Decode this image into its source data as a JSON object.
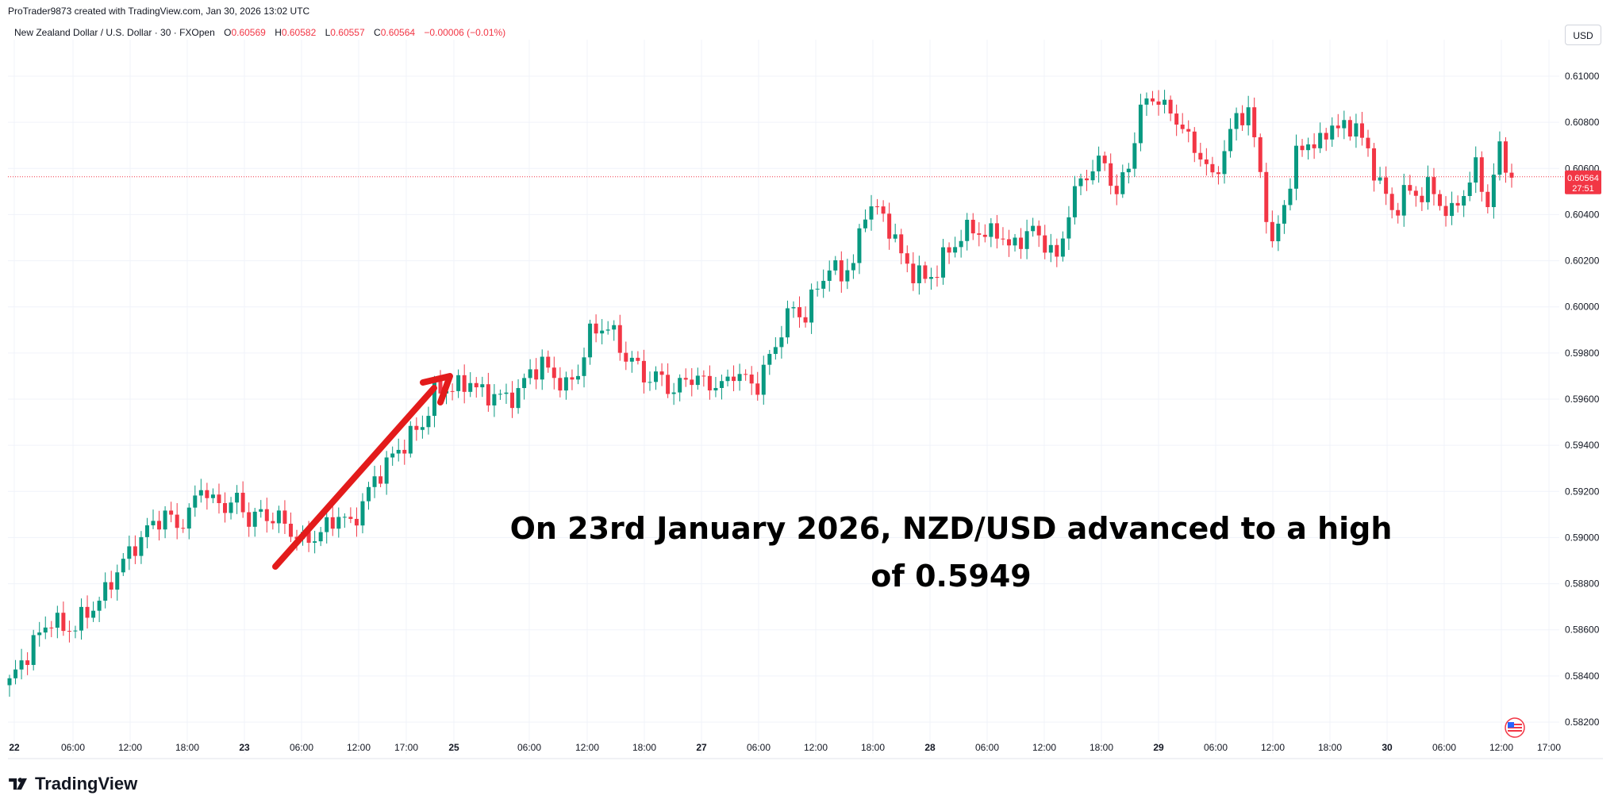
{
  "header": {
    "credit": "ProTrader9873 created with TradingView.com, Jan 30, 2026 13:02 UTC"
  },
  "legend": {
    "symbol": "New Zealand Dollar / U.S. Dollar · 30 · FXOpen",
    "o_label": "O",
    "o_value": "0.60569",
    "h_label": "H",
    "h_value": "0.60582",
    "l_label": "L",
    "l_value": "0.60557",
    "c_label": "C",
    "c_value": "0.60564",
    "change": "−0.00006 (−0.01%)"
  },
  "currency_button": "USD",
  "price_tag": {
    "value": "0.60564",
    "countdown": "27:51"
  },
  "annotation": {
    "line1": "On 23rd January 2026, NZD/USD advanced to a high",
    "line2": "of 0.5949"
  },
  "brand": {
    "name": "TradingView"
  },
  "colors": {
    "up": "#089981",
    "down": "#f23645",
    "arrow": "#e31b1b",
    "grid": "#f0f3fa",
    "axis_text": "#131722",
    "price_line": "#f23645"
  },
  "icons": {
    "brand": "tradingview-logo-icon",
    "flag": "us-flag-icon"
  },
  "chart_data": {
    "type": "candlestick",
    "title": "New Zealand Dollar / U.S. Dollar · 30 · FXOpen",
    "ylim": [
      0.5815,
      0.6112
    ],
    "y_ticks": [
      "0.61000",
      "0.60800",
      "0.60600",
      "0.60400",
      "0.60200",
      "0.60000",
      "0.59800",
      "0.59600",
      "0.59400",
      "0.59200",
      "0.59000",
      "0.58800",
      "0.58600",
      "0.58400",
      "0.58200"
    ],
    "x_ticks": [
      {
        "label": "22",
        "bold": true
      },
      {
        "label": "06:00"
      },
      {
        "label": "12:00"
      },
      {
        "label": "18:00"
      },
      {
        "label": "23",
        "bold": true
      },
      {
        "label": "06:00"
      },
      {
        "label": "12:00"
      },
      {
        "label": "17:00"
      },
      {
        "label": "25",
        "bold": true
      },
      {
        "label": "06:00"
      },
      {
        "label": "12:00"
      },
      {
        "label": "18:00"
      },
      {
        "label": "27",
        "bold": true
      },
      {
        "label": "06:00"
      },
      {
        "label": "12:00"
      },
      {
        "label": "18:00"
      },
      {
        "label": "28",
        "bold": true
      },
      {
        "label": "06:00"
      },
      {
        "label": "12:00"
      },
      {
        "label": "18:00"
      },
      {
        "label": "29",
        "bold": true
      },
      {
        "label": "06:00"
      },
      {
        "label": "12:00"
      },
      {
        "label": "18:00"
      },
      {
        "label": "30",
        "bold": true
      },
      {
        "label": "06:00"
      },
      {
        "label": "12:00"
      },
      {
        "label": "17:00"
      }
    ],
    "last_price": 0.60564,
    "close_path": [
      [
        0,
        0.5837
      ],
      [
        3,
        0.585
      ],
      [
        5,
        0.5858
      ],
      [
        7,
        0.5865
      ],
      [
        9,
        0.586
      ],
      [
        11,
        0.5862
      ],
      [
        14,
        0.587
      ],
      [
        16,
        0.5876
      ],
      [
        18,
        0.5886
      ],
      [
        20,
        0.5893
      ],
      [
        22,
        0.59
      ],
      [
        24,
        0.5906
      ],
      [
        26,
        0.591
      ],
      [
        28,
        0.5905
      ],
      [
        30,
        0.591
      ],
      [
        32,
        0.5923
      ],
      [
        34,
        0.5915
      ],
      [
        36,
        0.5914
      ],
      [
        38,
        0.5916
      ],
      [
        40,
        0.5908
      ],
      [
        42,
        0.591
      ],
      [
        45,
        0.5908
      ],
      [
        47,
        0.5903
      ],
      [
        49,
        0.5898
      ],
      [
        52,
        0.5902
      ],
      [
        55,
        0.591
      ],
      [
        57,
        0.5905
      ],
      [
        59,
        0.5915
      ],
      [
        61,
        0.5925
      ],
      [
        63,
        0.5932
      ],
      [
        65,
        0.5938
      ],
      [
        67,
        0.5944
      ],
      [
        69,
        0.5949
      ],
      [
        71,
        0.5963
      ],
      [
        73,
        0.5965
      ],
      [
        75,
        0.5965
      ],
      [
        77,
        0.5968
      ],
      [
        79,
        0.5962
      ],
      [
        81,
        0.5962
      ],
      [
        83,
        0.596
      ],
      [
        85,
        0.5963
      ],
      [
        87,
        0.5972
      ],
      [
        89,
        0.5975
      ],
      [
        91,
        0.597
      ],
      [
        93,
        0.5965
      ],
      [
        95,
        0.5972
      ],
      [
        97,
        0.5988
      ],
      [
        99,
        0.5992
      ],
      [
        101,
        0.5988
      ],
      [
        103,
        0.5978
      ],
      [
        105,
        0.5974
      ],
      [
        107,
        0.5968
      ],
      [
        109,
        0.597
      ],
      [
        111,
        0.5962
      ],
      [
        113,
        0.597
      ],
      [
        115,
        0.5968
      ],
      [
        117,
        0.5967
      ],
      [
        119,
        0.5965
      ],
      [
        121,
        0.5972
      ],
      [
        123,
        0.5968
      ],
      [
        125,
        0.5966
      ],
      [
        127,
        0.5978
      ],
      [
        129,
        0.599
      ],
      [
        131,
        0.6
      ],
      [
        133,
        0.5995
      ],
      [
        135,
        0.601
      ],
      [
        137,
        0.6016
      ],
      [
        139,
        0.6015
      ],
      [
        141,
        0.6018
      ],
      [
        143,
        0.6043
      ],
      [
        145,
        0.6042
      ],
      [
        147,
        0.6035
      ],
      [
        149,
        0.6022
      ],
      [
        151,
        0.6015
      ],
      [
        153,
        0.6012
      ],
      [
        155,
        0.6016
      ],
      [
        157,
        0.6025
      ],
      [
        159,
        0.603
      ],
      [
        161,
        0.6035
      ],
      [
        163,
        0.603
      ],
      [
        165,
        0.6034
      ],
      [
        167,
        0.6025
      ],
      [
        169,
        0.603
      ],
      [
        171,
        0.6033
      ],
      [
        173,
        0.6028
      ],
      [
        175,
        0.602
      ],
      [
        177,
        0.6042
      ],
      [
        179,
        0.6055
      ],
      [
        181,
        0.606
      ],
      [
        183,
        0.6063
      ],
      [
        185,
        0.6048
      ],
      [
        187,
        0.6062
      ],
      [
        189,
        0.6085
      ],
      [
        191,
        0.6092
      ],
      [
        193,
        0.6086
      ],
      [
        195,
        0.6082
      ],
      [
        197,
        0.6072
      ],
      [
        199,
        0.6066
      ],
      [
        201,
        0.6055
      ],
      [
        203,
        0.6068
      ],
      [
        205,
        0.6082
      ],
      [
        207,
        0.6085
      ],
      [
        209,
        0.6058
      ],
      [
        211,
        0.6025
      ],
      [
        213,
        0.6045
      ],
      [
        215,
        0.6065
      ],
      [
        217,
        0.6072
      ],
      [
        219,
        0.607
      ],
      [
        221,
        0.608
      ],
      [
        223,
        0.6076
      ],
      [
        225,
        0.608
      ],
      [
        227,
        0.6065
      ],
      [
        229,
        0.6055
      ],
      [
        231,
        0.604
      ],
      [
        233,
        0.605
      ],
      [
        235,
        0.6048
      ],
      [
        237,
        0.6052
      ],
      [
        239,
        0.6045
      ],
      [
        241,
        0.604
      ],
      [
        243,
        0.605
      ],
      [
        245,
        0.606
      ],
      [
        247,
        0.6045
      ],
      [
        249,
        0.6068
      ],
      [
        251,
        0.6056
      ]
    ]
  }
}
